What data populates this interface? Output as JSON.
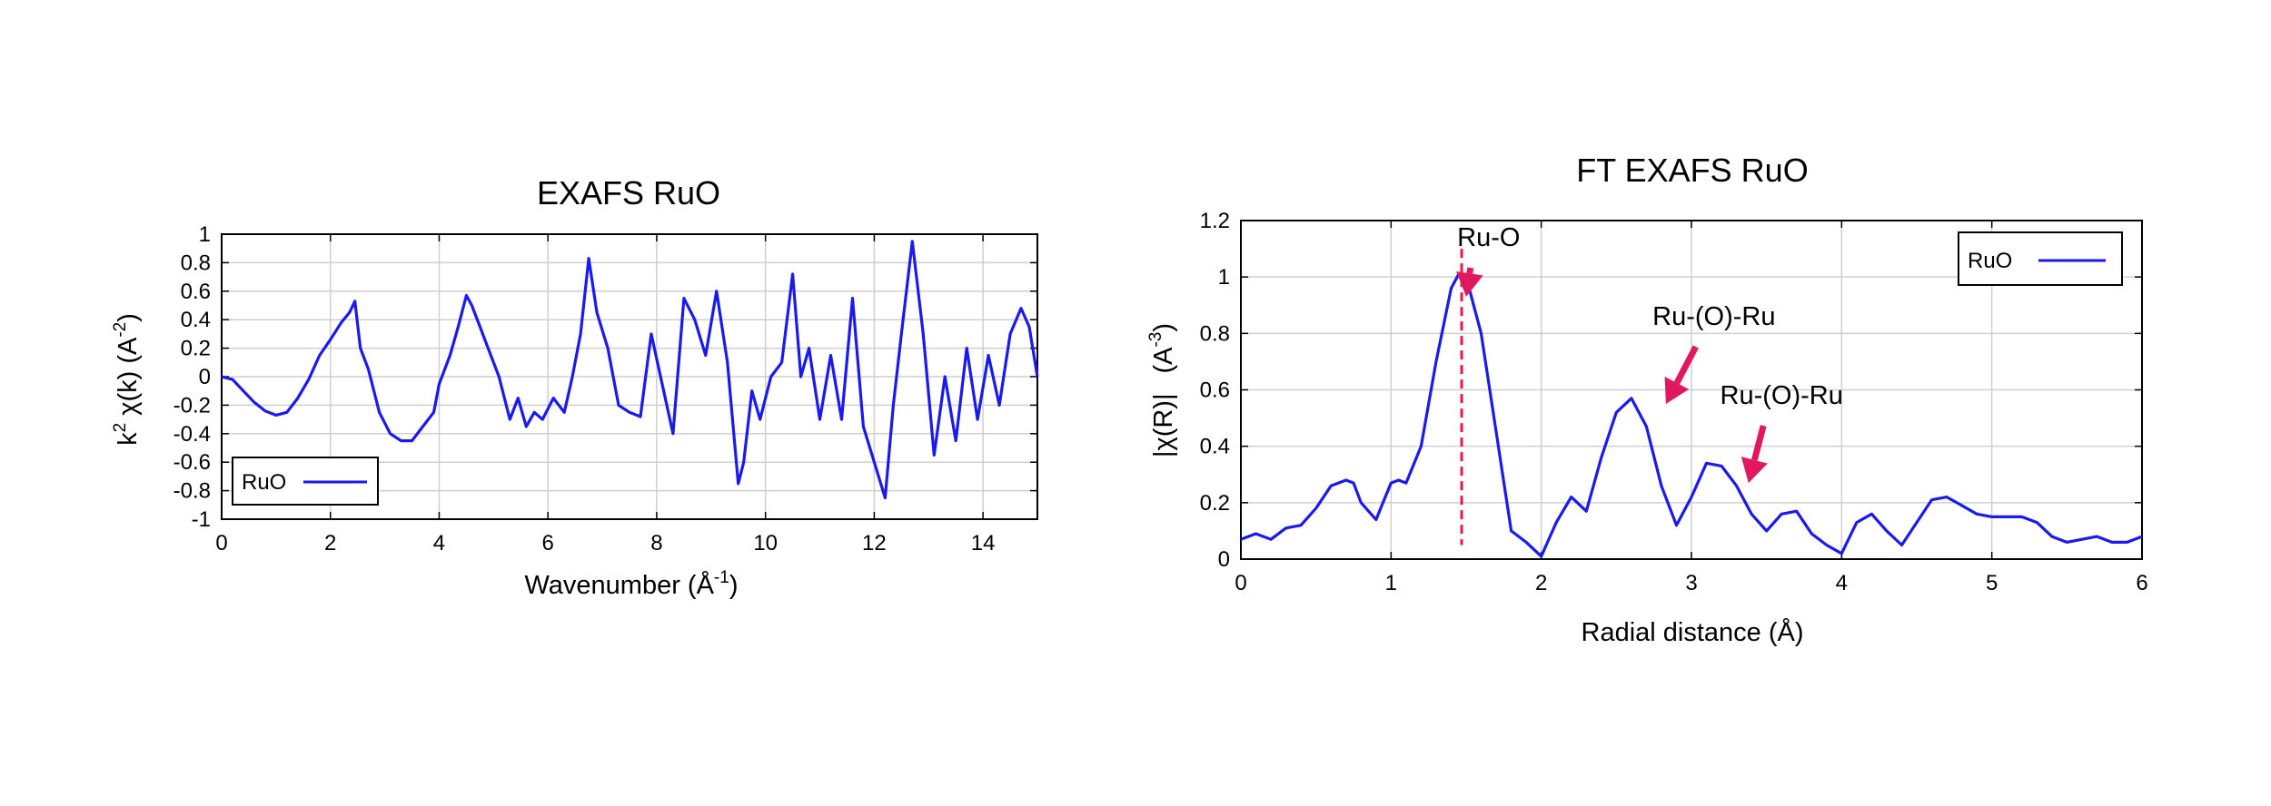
{
  "chart_data": [
    {
      "type": "line",
      "title": "EXAFS RuO",
      "xlabel": "Wavenumber    (Å",
      "xlabel_sup": "-1",
      "xlabel_end": ")",
      "ylabel_k": "k",
      "ylabel_sup1": "2",
      "ylabel_mid": " χ(k)    (A",
      "ylabel_sup2": "-2",
      "ylabel_end": ")",
      "xlim": [
        0,
        15
      ],
      "ylim": [
        -1,
        1
      ],
      "xticks": [
        "0",
        "2",
        "4",
        "6",
        "8",
        "10",
        "12",
        "14"
      ],
      "yticks": [
        "1",
        "0.8",
        "0.6",
        "0.4",
        "0.2",
        "0",
        "-0.2",
        "-0.4",
        "-0.6",
        "-0.8",
        "-1"
      ],
      "grid": true,
      "legend_position": "bottom-left",
      "series": [
        {
          "name": "RuO",
          "color": "#1a1aee",
          "x": [
            0,
            0.2,
            0.4,
            0.6,
            0.8,
            1.0,
            1.2,
            1.4,
            1.6,
            1.8,
            2.0,
            2.2,
            2.35,
            2.45,
            2.55,
            2.7,
            2.9,
            3.1,
            3.3,
            3.5,
            3.7,
            3.9,
            4.0,
            4.2,
            4.35,
            4.5,
            4.6,
            4.75,
            4.9,
            5.1,
            5.3,
            5.45,
            5.6,
            5.75,
            5.9,
            6.1,
            6.3,
            6.45,
            6.6,
            6.75,
            6.9,
            7.1,
            7.3,
            7.5,
            7.7,
            7.9,
            8.1,
            8.3,
            8.5,
            8.7,
            8.9,
            9.1,
            9.3,
            9.5,
            9.6,
            9.75,
            9.9,
            10.1,
            10.3,
            10.5,
            10.65,
            10.8,
            11.0,
            11.2,
            11.4,
            11.6,
            11.8,
            12.0,
            12.2,
            12.35,
            12.5,
            12.7,
            12.9,
            13.1,
            13.3,
            13.5,
            13.7,
            13.9,
            14.1,
            14.3,
            14.5,
            14.7,
            14.85,
            15.0
          ],
          "y": [
            0,
            -0.02,
            -0.1,
            -0.18,
            -0.24,
            -0.27,
            -0.25,
            -0.15,
            -0.02,
            0.15,
            0.26,
            0.38,
            0.45,
            0.53,
            0.2,
            0.05,
            -0.25,
            -0.4,
            -0.45,
            -0.45,
            -0.35,
            -0.25,
            -0.05,
            0.15,
            0.35,
            0.57,
            0.5,
            0.35,
            0.2,
            0.0,
            -0.3,
            -0.15,
            -0.35,
            -0.25,
            -0.3,
            -0.15,
            -0.25,
            0.0,
            0.3,
            0.83,
            0.45,
            0.2,
            -0.2,
            -0.25,
            -0.28,
            0.3,
            -0.05,
            -0.4,
            0.55,
            0.4,
            0.15,
            0.6,
            0.1,
            -0.75,
            -0.6,
            -0.1,
            -0.3,
            0.0,
            0.1,
            0.72,
            0.0,
            0.2,
            -0.3,
            0.15,
            -0.3,
            0.55,
            -0.35,
            -0.6,
            -0.85,
            -0.2,
            0.3,
            0.95,
            0.3,
            -0.55,
            0.0,
            -0.45,
            0.2,
            -0.3,
            0.15,
            -0.2,
            0.3,
            0.48,
            0.35,
            0.0
          ]
        }
      ]
    },
    {
      "type": "line",
      "title": "FT EXAFS RuO",
      "xlabel": "Radial distance    (Å)",
      "ylabel_a": "|χ(R)|",
      "ylabel_b": "(A",
      "ylabel_sup": "-3",
      "ylabel_end": ")",
      "xlim": [
        0,
        6
      ],
      "ylim": [
        0,
        1.2
      ],
      "xticks": [
        "0",
        "1",
        "2",
        "3",
        "4",
        "5",
        "6"
      ],
      "yticks": [
        "1.2",
        "1",
        "0.8",
        "0.6",
        "0.4",
        "0.2",
        "0"
      ],
      "grid": true,
      "legend_position": "top-right",
      "reference_line_x": 1.47,
      "reference_line_color": "#e6194b",
      "annotations": [
        {
          "text": "Ru-O",
          "peak_x": 1.5,
          "peak_y": 0.93,
          "label_x": 1.65,
          "label_y": 1.11
        },
        {
          "text": "Ru-(O)-Ru",
          "peak_x": 2.83,
          "peak_y": 0.55,
          "label_x": 3.15,
          "label_y": 0.83
        },
        {
          "text": "Ru-(O)-Ru",
          "peak_x": 3.38,
          "peak_y": 0.27,
          "label_x": 3.6,
          "label_y": 0.55
        }
      ],
      "arrow_color": "#e0195e",
      "series": [
        {
          "name": "RuO",
          "color": "#1a1aee",
          "x": [
            0,
            0.1,
            0.2,
            0.3,
            0.4,
            0.5,
            0.6,
            0.7,
            0.75,
            0.8,
            0.9,
            1.0,
            1.05,
            1.1,
            1.2,
            1.3,
            1.4,
            1.45,
            1.5,
            1.6,
            1.7,
            1.8,
            1.9,
            2.0,
            2.1,
            2.2,
            2.3,
            2.4,
            2.5,
            2.6,
            2.7,
            2.8,
            2.9,
            3.0,
            3.1,
            3.2,
            3.3,
            3.4,
            3.5,
            3.6,
            3.7,
            3.8,
            3.9,
            4.0,
            4.1,
            4.2,
            4.3,
            4.4,
            4.5,
            4.6,
            4.7,
            4.8,
            4.9,
            5.0,
            5.1,
            5.2,
            5.3,
            5.4,
            5.5,
            5.6,
            5.7,
            5.8,
            5.9,
            6.0
          ],
          "y": [
            0.07,
            0.09,
            0.07,
            0.11,
            0.12,
            0.18,
            0.26,
            0.28,
            0.27,
            0.2,
            0.14,
            0.27,
            0.28,
            0.27,
            0.4,
            0.7,
            0.96,
            1.01,
            1.0,
            0.8,
            0.45,
            0.1,
            0.06,
            0.01,
            0.13,
            0.22,
            0.17,
            0.36,
            0.52,
            0.57,
            0.47,
            0.26,
            0.12,
            0.22,
            0.34,
            0.33,
            0.26,
            0.16,
            0.1,
            0.16,
            0.17,
            0.09,
            0.05,
            0.02,
            0.13,
            0.16,
            0.1,
            0.05,
            0.13,
            0.21,
            0.22,
            0.19,
            0.16,
            0.15,
            0.15,
            0.15,
            0.13,
            0.08,
            0.06,
            0.07,
            0.08,
            0.06,
            0.06,
            0.08
          ]
        }
      ]
    }
  ]
}
